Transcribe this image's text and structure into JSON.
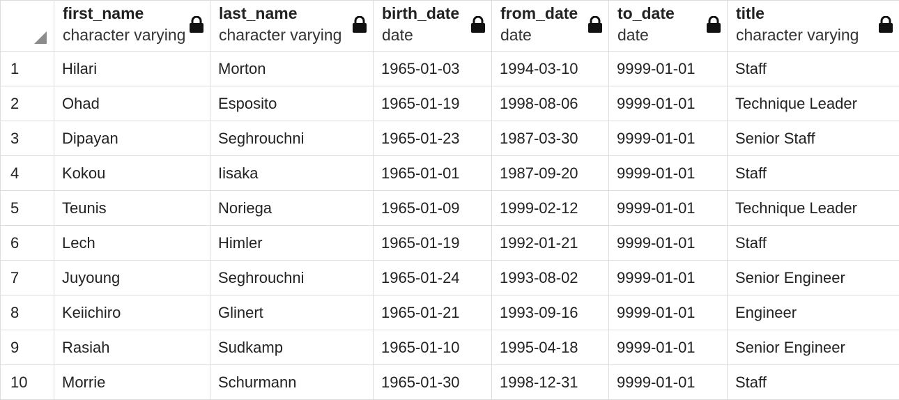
{
  "table": {
    "columns": [
      {
        "key": "first_name",
        "name": "first_name",
        "type": "character varying",
        "locked": true
      },
      {
        "key": "last_name",
        "name": "last_name",
        "type": "character varying",
        "locked": true
      },
      {
        "key": "birth_date",
        "name": "birth_date",
        "type": "date",
        "locked": true
      },
      {
        "key": "from_date",
        "name": "from_date",
        "type": "date",
        "locked": true
      },
      {
        "key": "to_date",
        "name": "to_date",
        "type": "date",
        "locked": true
      },
      {
        "key": "title",
        "name": "title",
        "type": "character varying",
        "locked": true
      }
    ],
    "rows": [
      {
        "n": "1",
        "first_name": "Hilari",
        "last_name": "Morton",
        "birth_date": "1965-01-03",
        "from_date": "1994-03-10",
        "to_date": "9999-01-01",
        "title": "Staff"
      },
      {
        "n": "2",
        "first_name": "Ohad",
        "last_name": "Esposito",
        "birth_date": "1965-01-19",
        "from_date": "1998-08-06",
        "to_date": "9999-01-01",
        "title": "Technique Leader"
      },
      {
        "n": "3",
        "first_name": "Dipayan",
        "last_name": "Seghrouchni",
        "birth_date": "1965-01-23",
        "from_date": "1987-03-30",
        "to_date": "9999-01-01",
        "title": "Senior Staff"
      },
      {
        "n": "4",
        "first_name": "Kokou",
        "last_name": "Iisaka",
        "birth_date": "1965-01-01",
        "from_date": "1987-09-20",
        "to_date": "9999-01-01",
        "title": "Staff"
      },
      {
        "n": "5",
        "first_name": "Teunis",
        "last_name": "Noriega",
        "birth_date": "1965-01-09",
        "from_date": "1999-02-12",
        "to_date": "9999-01-01",
        "title": "Technique Leader"
      },
      {
        "n": "6",
        "first_name": "Lech",
        "last_name": "Himler",
        "birth_date": "1965-01-19",
        "from_date": "1992-01-21",
        "to_date": "9999-01-01",
        "title": "Staff"
      },
      {
        "n": "7",
        "first_name": "Juyoung",
        "last_name": "Seghrouchni",
        "birth_date": "1965-01-24",
        "from_date": "1993-08-02",
        "to_date": "9999-01-01",
        "title": "Senior Engineer"
      },
      {
        "n": "8",
        "first_name": "Keiichiro",
        "last_name": "Glinert",
        "birth_date": "1965-01-21",
        "from_date": "1993-09-16",
        "to_date": "9999-01-01",
        "title": "Engineer"
      },
      {
        "n": "9",
        "first_name": "Rasiah",
        "last_name": "Sudkamp",
        "birth_date": "1965-01-10",
        "from_date": "1995-04-18",
        "to_date": "9999-01-01",
        "title": "Senior Engineer"
      },
      {
        "n": "10",
        "first_name": "Morrie",
        "last_name": "Schurmann",
        "birth_date": "1965-01-30",
        "from_date": "1998-12-31",
        "to_date": "9999-01-01",
        "title": "Staff"
      }
    ]
  },
  "icons": {
    "lock": "lock-icon",
    "select_all": "select-all-corner-icon"
  },
  "colors": {
    "grid_border": "#dcdcdc",
    "corner_triangle": "#8c8c8c",
    "text": "#222222"
  }
}
